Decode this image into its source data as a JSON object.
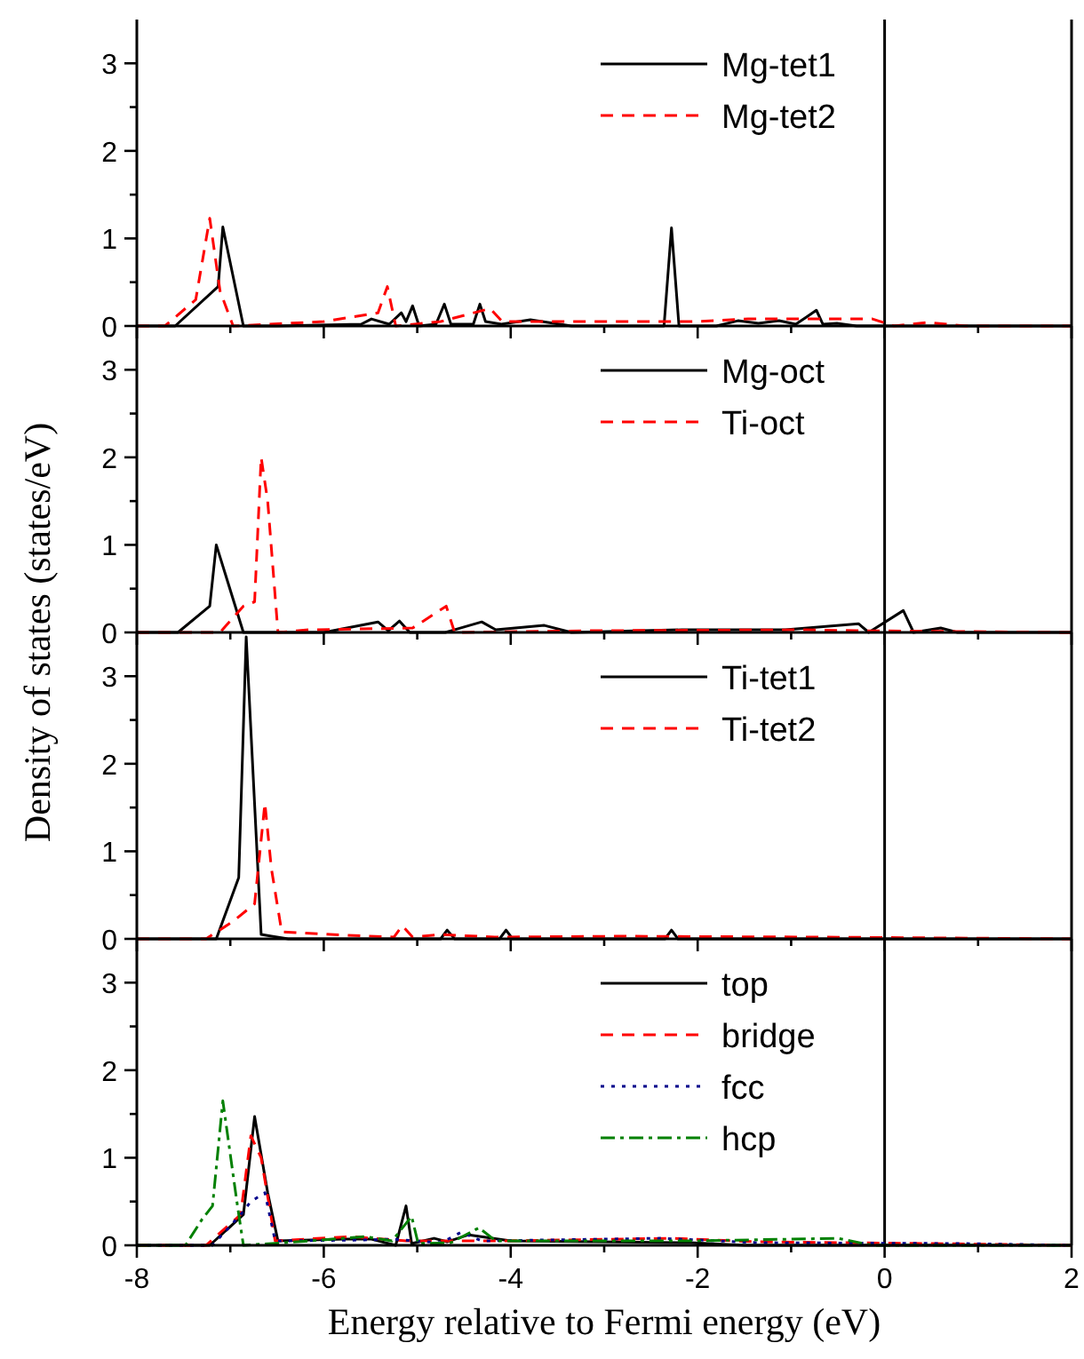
{
  "chart_data": [
    {
      "type": "line",
      "xlim": [
        -8,
        2
      ],
      "xticks": [
        -8,
        {
          "value": -7,
          "label": null
        },
        -6,
        {
          "value": -5,
          "label": null
        },
        -4,
        {
          "value": -3,
          "label": null
        },
        -2,
        {
          "value": -1,
          "label": null
        },
        0,
        {
          "value": 1,
          "label": null
        },
        2
      ],
      "ylim": [
        0,
        3.5
      ],
      "yticks": [
        0,
        {
          "value": 0.5,
          "label": null
        },
        1,
        {
          "value": 1.5,
          "label": null
        },
        2,
        {
          "value": 2.5,
          "label": null
        },
        3
      ],
      "tick_labels": "y",
      "legend": "top right",
      "ref_lines": [
        {
          "axis": "x",
          "value": 0,
          "color": "#000000"
        }
      ],
      "series": [
        {
          "name": "Mg-tet1",
          "color": "#000000",
          "line_style": "solid",
          "x": [
            -8,
            -7.59,
            -7.13,
            -7.08,
            -6.86,
            -6.5,
            -5.6,
            -5.49,
            -5.3,
            -5.17,
            -5.12,
            -5.05,
            -4.98,
            -4.8,
            -4.71,
            -4.64,
            -4.4,
            -4.33,
            -4.27,
            -4.1,
            -3.79,
            -3.35,
            -2.36,
            -2.28,
            -2.2,
            -1.8,
            -1.57,
            -1.35,
            -1.13,
            -0.95,
            -0.84,
            -0.73,
            -0.66,
            -0.51,
            -0.3,
            2
          ],
          "values": [
            0,
            0,
            0.45,
            1.13,
            0,
            0,
            0.02,
            0.08,
            0.02,
            0.15,
            0.05,
            0.23,
            0,
            0.02,
            0.25,
            0.02,
            0.02,
            0.25,
            0.05,
            0.02,
            0.07,
            0,
            0,
            1.12,
            0,
            0,
            0.06,
            0.03,
            0.06,
            0.02,
            0.1,
            0.18,
            0.02,
            0.03,
            0,
            0
          ]
        },
        {
          "name": "Mg-tet2",
          "color": "#ff0000",
          "line_style": "dashed",
          "x": [
            -8,
            -7.7,
            -7.37,
            -7.22,
            -7.11,
            -6.97,
            -6.0,
            -5.42,
            -5.32,
            -5.23,
            -4.75,
            -4.22,
            -4.09,
            -3.57,
            -2.02,
            -1.46,
            -0.13,
            0.1,
            0.46,
            0.86,
            2
          ],
          "values": [
            0,
            0,
            0.3,
            1.23,
            0.4,
            0,
            0.05,
            0.15,
            0.45,
            0,
            0.05,
            0.2,
            0.05,
            0.05,
            0.05,
            0.08,
            0.08,
            0,
            0.04,
            0,
            0
          ]
        }
      ]
    },
    {
      "type": "line",
      "xlim": [
        -8,
        2
      ],
      "xticks": [
        -8,
        {
          "value": -7,
          "label": null
        },
        -6,
        {
          "value": -5,
          "label": null
        },
        -4,
        {
          "value": -3,
          "label": null
        },
        -2,
        {
          "value": -1,
          "label": null
        },
        0,
        {
          "value": 1,
          "label": null
        },
        2
      ],
      "ylim": [
        0,
        3.5
      ],
      "yticks": [
        0,
        {
          "value": 0.5,
          "label": null
        },
        1,
        {
          "value": 1.5,
          "label": null
        },
        2,
        {
          "value": 2.5,
          "label": null
        },
        3
      ],
      "tick_labels": "y",
      "legend": "top right",
      "ylabel": "Density of states (states/eV)",
      "ref_lines": [
        {
          "axis": "x",
          "value": 0,
          "color": "#000000"
        }
      ],
      "series": [
        {
          "name": "Mg-oct",
          "color": "#000000",
          "line_style": "solid",
          "x": [
            -8,
            -7.56,
            -7.22,
            -7.15,
            -6.86,
            -6.0,
            -5.42,
            -5.31,
            -5.19,
            -5.08,
            -4.7,
            -4.31,
            -4.16,
            -3.64,
            -3.35,
            -2.17,
            -1.06,
            -0.28,
            -0.17,
            0.2,
            0.31,
            0.6,
            0.78,
            2
          ],
          "values": [
            0,
            0,
            0.3,
            1.0,
            0,
            0,
            0.12,
            0.02,
            0.13,
            0,
            0,
            0.12,
            0.03,
            0.08,
            0,
            0.03,
            0.03,
            0.1,
            0,
            0.25,
            0,
            0.05,
            0,
            0
          ]
        },
        {
          "name": "Ti-oct",
          "color": "#ff0000",
          "line_style": "dashed",
          "x": [
            -8,
            -7.11,
            -6.86,
            -6.74,
            -6.67,
            -6.6,
            -6.49,
            -6.16,
            -5.05,
            -4.69,
            -4.6,
            -3.1,
            -0.89,
            -0.3,
            2
          ],
          "values": [
            0,
            0,
            0.3,
            0.35,
            2.0,
            1.5,
            0,
            0.03,
            0.05,
            0.3,
            0,
            0.02,
            0.03,
            0.02,
            0
          ]
        }
      ]
    },
    {
      "type": "line",
      "xlim": [
        -8,
        2
      ],
      "xticks": [
        -8,
        {
          "value": -7,
          "label": null
        },
        -6,
        {
          "value": -5,
          "label": null
        },
        -4,
        {
          "value": -3,
          "label": null
        },
        -2,
        {
          "value": -1,
          "label": null
        },
        0,
        {
          "value": 1,
          "label": null
        },
        2
      ],
      "ylim": [
        0,
        3.5
      ],
      "yticks": [
        0,
        {
          "value": 0.5,
          "label": null
        },
        1,
        {
          "value": 1.5,
          "label": null
        },
        2,
        {
          "value": 2.5,
          "label": null
        },
        3
      ],
      "tick_labels": "y",
      "legend": "top right",
      "ref_lines": [
        {
          "axis": "x",
          "value": 0,
          "color": "#000000"
        }
      ],
      "series": [
        {
          "name": "Ti-tet1",
          "color": "#000000",
          "line_style": "solid",
          "x": [
            -8,
            -7.15,
            -6.91,
            -6.83,
            -6.67,
            -6.56,
            -6.38,
            -4.75,
            -4.68,
            -4.6,
            -4.12,
            -4.05,
            -3.98,
            -2.35,
            -2.28,
            -2.21,
            2
          ],
          "values": [
            0,
            0,
            0.7,
            3.45,
            0.05,
            0.03,
            0,
            0,
            0.1,
            0,
            0,
            0.1,
            0,
            0,
            0.1,
            0,
            0
          ]
        },
        {
          "name": "Ti-tet2",
          "color": "#ff0000",
          "line_style": "dashed",
          "x": [
            -8,
            -7.26,
            -6.97,
            -6.74,
            -6.63,
            -6.56,
            -6.45,
            -5.93,
            -5.25,
            -5.16,
            -5.05,
            -4.75,
            -4.17,
            -2.84,
            -0.63,
            2
          ],
          "values": [
            0,
            0,
            0.2,
            0.4,
            1.55,
            0.8,
            0.08,
            0.05,
            0.02,
            0.15,
            0.02,
            0.05,
            0.02,
            0.03,
            0.02,
            0
          ]
        }
      ]
    },
    {
      "type": "line",
      "xlim": [
        -8,
        2
      ],
      "xticks": [
        -8,
        {
          "value": -7,
          "label": null
        },
        -6,
        {
          "value": -5,
          "label": null
        },
        -4,
        {
          "value": -3,
          "label": null
        },
        -2,
        {
          "value": -1,
          "label": null
        },
        0,
        {
          "value": 1,
          "label": null
        },
        2
      ],
      "ylim": [
        0,
        3.5
      ],
      "yticks": [
        0,
        {
          "value": 0.5,
          "label": null
        },
        1,
        {
          "value": 1.5,
          "label": null
        },
        2,
        {
          "value": 2.5,
          "label": null
        },
        3
      ],
      "legend": "top right",
      "xlabel": "Energy relative to Fermi energy (eV)",
      "ref_lines": [
        {
          "axis": "x",
          "value": 0,
          "color": "#000000"
        }
      ],
      "series": [
        {
          "name": "top",
          "color": "#000000",
          "line_style": "solid",
          "x": [
            -8,
            -7.22,
            -6.86,
            -6.74,
            -6.6,
            -6.49,
            -5.78,
            -5.49,
            -5.23,
            -5.12,
            -5.06,
            -4.82,
            -4.68,
            -4.45,
            -4.0,
            -2.08,
            -1.5,
            2
          ],
          "values": [
            0,
            0,
            0.35,
            1.47,
            0.6,
            0.05,
            0.07,
            0.07,
            0,
            0.45,
            0.02,
            0.08,
            0.04,
            0.12,
            0.05,
            0.03,
            0,
            0
          ]
        },
        {
          "name": "bridge",
          "color": "#ff0000",
          "line_style": "dashed",
          "x": [
            -8,
            -7.26,
            -6.89,
            -6.78,
            -6.67,
            -6.52,
            -5.71,
            -5.12,
            -4.08,
            -2.28,
            -1.36,
            0.48,
            2
          ],
          "values": [
            0,
            0,
            0.35,
            1.25,
            1.0,
            0.05,
            0.1,
            0.05,
            0.05,
            0.08,
            0.04,
            0.02,
            0
          ]
        },
        {
          "name": "fcc",
          "color": "#00008b",
          "line_style": "dotted",
          "x": [
            -8,
            -7.19,
            -6.89,
            -6.78,
            -6.63,
            -6.52,
            -5.63,
            -5.27,
            -4.74,
            -4.53,
            -4.31,
            -2.39,
            -1.36,
            0.85,
            2
          ],
          "values": [
            0,
            0,
            0.35,
            0.5,
            0.6,
            0.05,
            0.06,
            0.07,
            0.03,
            0.15,
            0.05,
            0.08,
            0.03,
            0.02,
            0
          ]
        },
        {
          "name": "hcp",
          "color": "#008000",
          "line_style": "dashdot",
          "x": [
            -8,
            -7.48,
            -7.3,
            -7.19,
            -7.08,
            -6.93,
            -6.86,
            -6.41,
            -5.56,
            -5.27,
            -5.06,
            -4.99,
            -4.64,
            -4.34,
            -4.16,
            -2.08,
            -0.5,
            -0.13,
            2
          ],
          "values": [
            0,
            0,
            0.3,
            0.45,
            1.65,
            0.5,
            0,
            0.03,
            0.1,
            0.05,
            0.33,
            0.02,
            0.03,
            0.2,
            0.05,
            0.05,
            0.08,
            0,
            0
          ]
        }
      ]
    }
  ]
}
